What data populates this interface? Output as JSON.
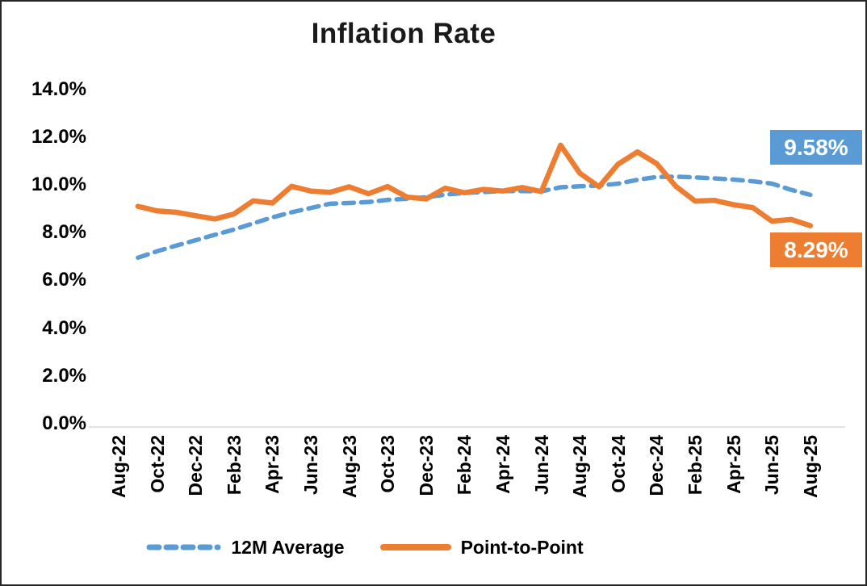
{
  "chart_data": {
    "type": "line",
    "title": "Inflation Rate",
    "categories": [
      "Aug-22",
      "Sep-22",
      "Oct-22",
      "Nov-22",
      "Dec-22",
      "Jan-23",
      "Feb-23",
      "Mar-23",
      "Apr-23",
      "May-23",
      "Jun-23",
      "Jul-23",
      "Aug-23",
      "Sep-23",
      "Oct-23",
      "Nov-23",
      "Dec-23",
      "Jan-24",
      "Feb-24",
      "Mar-24",
      "Apr-24",
      "May-24",
      "Jun-24",
      "Jul-24",
      "Aug-24",
      "Sep-24",
      "Oct-24",
      "Nov-24",
      "Dec-24",
      "Jan-25",
      "Feb-25",
      "Mar-25",
      "Apr-25",
      "May-25",
      "Jun-25",
      "Jul-25",
      "Aug-25"
    ],
    "x_tick_every": 2,
    "series": [
      {
        "name": "12M Average",
        "style": "dashed",
        "color": "#5B9BD5",
        "values": [
          null,
          6.95,
          7.22,
          7.46,
          7.68,
          7.91,
          8.13,
          8.39,
          8.64,
          8.85,
          9.03,
          9.21,
          9.24,
          9.28,
          9.37,
          9.42,
          9.48,
          9.59,
          9.66,
          9.7,
          9.74,
          9.74,
          9.73,
          9.9,
          9.94,
          9.97,
          10.05,
          10.21,
          10.33,
          10.34,
          10.31,
          10.27,
          10.22,
          10.15,
          10.05,
          9.79,
          9.58
        ]
      },
      {
        "name": "Point-to-Point",
        "style": "solid",
        "color": "#ED7D31",
        "values": [
          null,
          9.1,
          8.91,
          8.85,
          8.71,
          8.57,
          8.78,
          9.33,
          9.24,
          9.94,
          9.74,
          9.69,
          9.92,
          9.63,
          9.93,
          9.49,
          9.41,
          9.86,
          9.67,
          9.81,
          9.74,
          9.89,
          9.72,
          11.66,
          10.49,
          9.92,
          10.87,
          11.38,
          10.89,
          9.94,
          9.32,
          9.35,
          9.17,
          9.05,
          8.48,
          8.55,
          8.29
        ]
      }
    ],
    "y_ticks": [
      "0.0%",
      "2.0%",
      "4.0%",
      "6.0%",
      "8.0%",
      "10.0%",
      "12.0%",
      "14.0%"
    ],
    "ylim": [
      0,
      14
    ],
    "grid": false,
    "legend_position": "bottom",
    "end_labels": [
      {
        "series": "12M Average",
        "text": "9.58%",
        "color": "#5B9BD5"
      },
      {
        "series": "Point-to-Point",
        "text": "8.29%",
        "color": "#ED7D31"
      }
    ]
  },
  "colors": {
    "axis_line": "#D9D9D9",
    "text": "#000000",
    "background": "#FFFFFF"
  }
}
